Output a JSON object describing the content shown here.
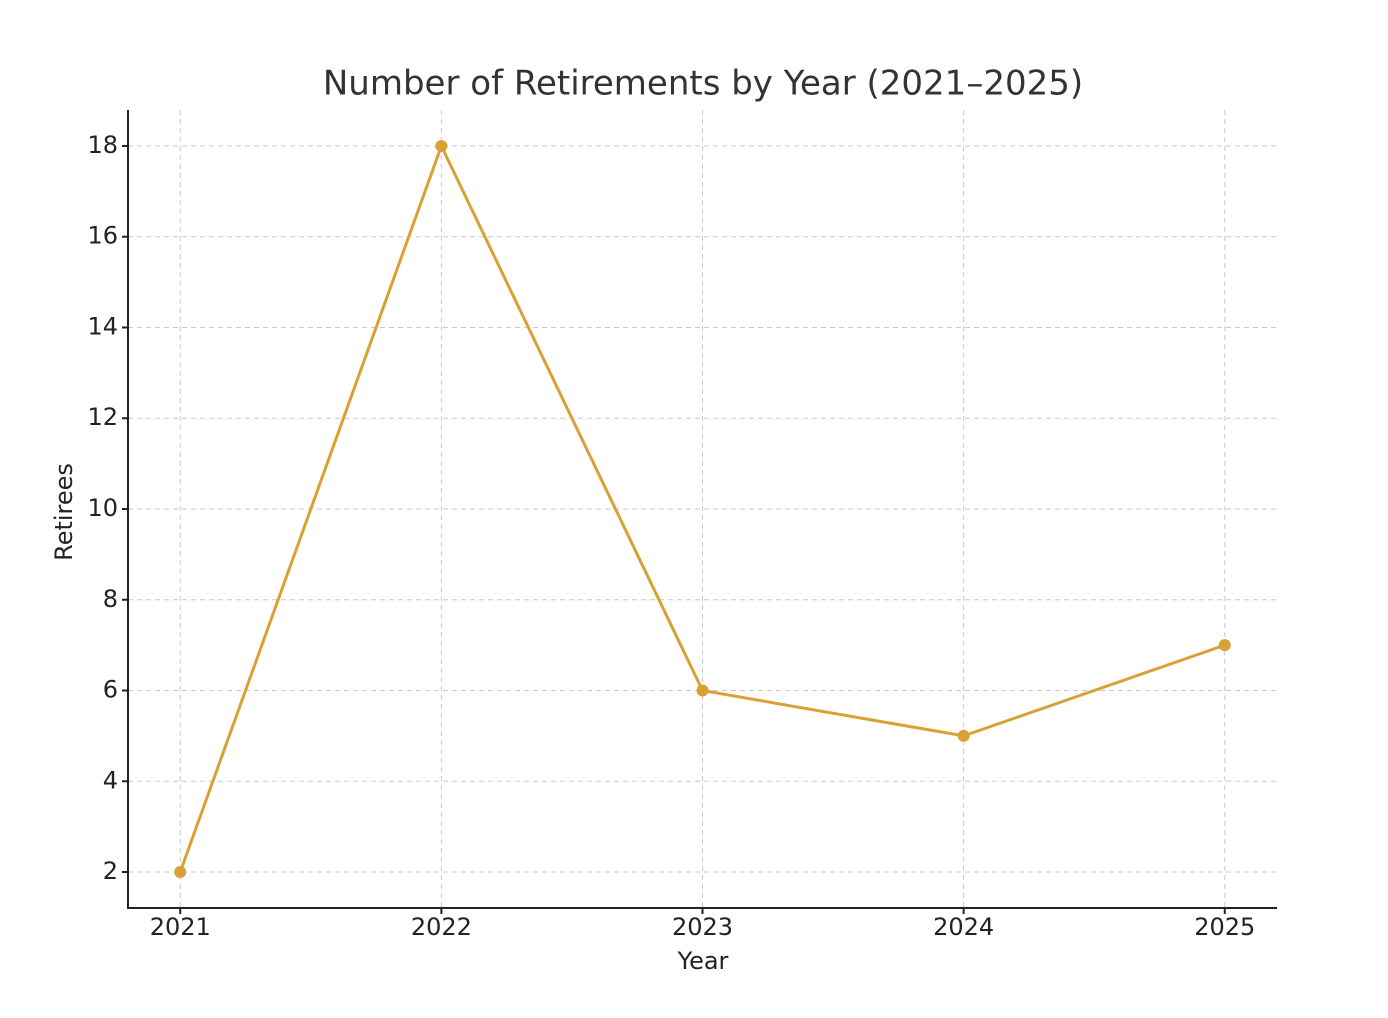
{
  "chart_data": {
    "type": "line",
    "title": "Number of Retirements by Year (2021–2025)",
    "x_label": "Year",
    "y_label": "Retirees",
    "x": [
      2021,
      2022,
      2023,
      2024,
      2025
    ],
    "series": [
      {
        "name": "Retirees",
        "color": "#d9a035",
        "values": [
          2,
          18,
          6,
          5,
          7
        ]
      }
    ],
    "xlim": [
      2020.8,
      2025.2
    ],
    "xticks": [
      2021,
      2022,
      2023,
      2024,
      2025
    ],
    "ylim": [
      1.207,
      18.793
    ],
    "yticks": [
      2,
      4,
      6,
      8,
      10,
      12,
      14,
      16,
      18
    ],
    "grid": true
  }
}
